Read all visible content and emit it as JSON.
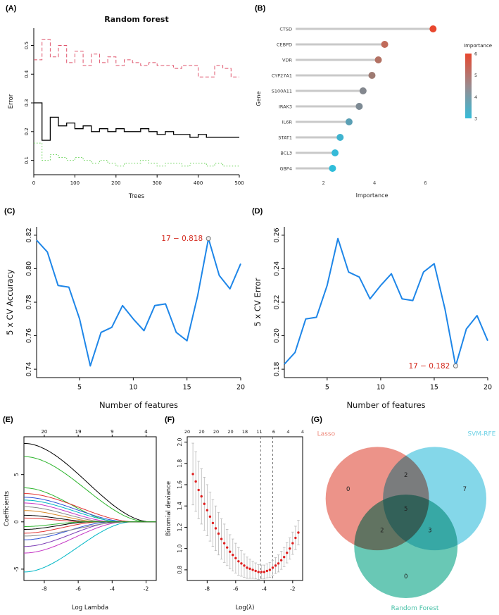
{
  "panels": {
    "A": {
      "label": "(A)"
    },
    "B": {
      "label": "(B)"
    },
    "C": {
      "label": "(C)"
    },
    "D": {
      "label": "(D)"
    },
    "E": {
      "label": "(E)"
    },
    "F": {
      "label": "(F)"
    },
    "G": {
      "label": "(G)"
    }
  },
  "chart_data": [
    {
      "id": "A",
      "type": "rf-error",
      "title": "Random forest",
      "xlabel": "Trees",
      "ylabel": "Error",
      "xlim": [
        0,
        500
      ],
      "ylim": [
        0.05,
        0.56
      ],
      "xticks": [
        "0",
        "100",
        "200",
        "300",
        "400",
        "500"
      ],
      "yticks": [
        "0.1",
        "0.2",
        "0.3",
        "0.4",
        "0.5"
      ],
      "x": [
        0,
        20,
        40,
        60,
        80,
        100,
        120,
        140,
        160,
        180,
        200,
        220,
        240,
        260,
        280,
        300,
        320,
        340,
        360,
        380,
        400,
        420,
        440,
        460,
        480,
        500
      ],
      "series": [
        {
          "name": "class-error-high",
          "color": "#df536b",
          "dash": "5 3",
          "width": 1,
          "values": [
            0.45,
            0.52,
            0.46,
            0.5,
            0.44,
            0.48,
            0.43,
            0.47,
            0.44,
            0.46,
            0.43,
            0.45,
            0.44,
            0.43,
            0.44,
            0.43,
            0.43,
            0.42,
            0.43,
            0.43,
            0.39,
            0.39,
            0.43,
            0.42,
            0.39,
            0.39
          ]
        },
        {
          "name": "oob-error",
          "color": "#000000",
          "dash": "",
          "width": 1.3,
          "values": [
            0.3,
            0.17,
            0.25,
            0.22,
            0.23,
            0.21,
            0.22,
            0.2,
            0.21,
            0.2,
            0.21,
            0.2,
            0.2,
            0.21,
            0.2,
            0.19,
            0.2,
            0.19,
            0.19,
            0.18,
            0.19,
            0.18,
            0.18,
            0.18,
            0.18,
            0.18
          ]
        },
        {
          "name": "class-error-low",
          "color": "#61d04f",
          "dash": "1.5 2.5",
          "width": 1,
          "values": [
            0.16,
            0.1,
            0.12,
            0.11,
            0.1,
            0.11,
            0.1,
            0.09,
            0.1,
            0.09,
            0.08,
            0.09,
            0.09,
            0.1,
            0.09,
            0.08,
            0.09,
            0.09,
            0.08,
            0.09,
            0.09,
            0.08,
            0.09,
            0.08,
            0.08,
            0.08
          ]
        }
      ]
    },
    {
      "id": "B",
      "type": "lollipop",
      "xlabel": "Importance",
      "ylabel": "Gene",
      "xlim": [
        0.9,
        6.9
      ],
      "xticks": [
        "2",
        "4",
        "6"
      ],
      "genes": [
        "CTSD",
        "CEBPD",
        "VDR",
        "CYP27A1",
        "S100A11",
        "IRAK3",
        "IL6R",
        "STAT1",
        "BCL3",
        "GBP4"
      ],
      "values": [
        6.3,
        4.4,
        4.15,
        3.9,
        3.55,
        3.4,
        3.0,
        2.65,
        2.45,
        2.35
      ],
      "colors": [
        "#e8472e",
        "#c06a59",
        "#b37163",
        "#9e7a72",
        "#83878e",
        "#7d8a94",
        "#5a9fb4",
        "#3fb3cf",
        "#35bad8",
        "#2fbdda"
      ],
      "stem_color": "#c9c9c9",
      "legend": {
        "title": "Importance",
        "ticks": [
          "6",
          "5",
          "4",
          "3"
        ],
        "gradient": [
          "#e8472e",
          "#9a8a8e",
          "#35bcd9"
        ]
      }
    },
    {
      "id": "C",
      "type": "cv-line",
      "xlabel": "Number of features",
      "ylabel": "5 x CV Accuracy",
      "xlim": [
        1,
        20
      ],
      "ylim": [
        0.735,
        0.825
      ],
      "xticks": [
        "5",
        "10",
        "15",
        "20"
      ],
      "yticks": [
        "0.74",
        "0.76",
        "0.78",
        "0.80",
        "0.82"
      ],
      "color": "#1e86e8",
      "x": [
        1,
        2,
        3,
        4,
        5,
        6,
        7,
        8,
        9,
        10,
        11,
        12,
        13,
        14,
        15,
        16,
        17,
        18,
        19,
        20
      ],
      "values": [
        0.817,
        0.81,
        0.79,
        0.789,
        0.77,
        0.742,
        0.762,
        0.765,
        0.778,
        0.77,
        0.763,
        0.778,
        0.779,
        0.762,
        0.757,
        0.784,
        0.818,
        0.796,
        0.788,
        0.803
      ],
      "annotation": {
        "text": "17 − 0.818",
        "x": 17,
        "y": 0.818,
        "color": "#d42a1e"
      }
    },
    {
      "id": "D",
      "type": "cv-line",
      "xlabel": "Number of features",
      "ylabel": "5 x CV Error",
      "xlim": [
        1,
        20
      ],
      "ylim": [
        0.175,
        0.265
      ],
      "xticks": [
        "5",
        "10",
        "15",
        "20"
      ],
      "yticks": [
        "0.18",
        "0.20",
        "0.22",
        "0.24",
        "0.26"
      ],
      "color": "#1e86e8",
      "x": [
        1,
        2,
        3,
        4,
        5,
        6,
        7,
        8,
        9,
        10,
        11,
        12,
        13,
        14,
        15,
        16,
        17,
        18,
        19,
        20
      ],
      "values": [
        0.183,
        0.19,
        0.21,
        0.211,
        0.23,
        0.258,
        0.238,
        0.235,
        0.222,
        0.23,
        0.237,
        0.222,
        0.221,
        0.238,
        0.243,
        0.216,
        0.182,
        0.204,
        0.212,
        0.197
      ],
      "annotation": {
        "text": "17 − 0.182",
        "x": 17,
        "y": 0.182,
        "color": "#d42a1e"
      }
    },
    {
      "id": "E",
      "type": "lasso-paths",
      "xlabel": "Log Lambda",
      "ylabel": "Coefficients",
      "xlim": [
        -9.2,
        -1.4
      ],
      "ylim": [
        -6.2,
        9.0
      ],
      "xticks": [
        "-8",
        "-6",
        "-4",
        "-2"
      ],
      "yticks": [
        "-5",
        "0",
        "5"
      ],
      "top_ticks": {
        "positions": [
          -8,
          -6,
          -4,
          -2
        ],
        "labels": [
          "20",
          "19",
          "9",
          "4"
        ]
      },
      "paths": [
        {
          "color": "#000000",
          "y0": 8.3,
          "xz": -1.7
        },
        {
          "color": "#2db52d",
          "y0": 6.9,
          "xz": -1.9
        },
        {
          "color": "#2db52d",
          "y0": 3.6,
          "xz": -3.6
        },
        {
          "color": "#e03232",
          "y0": 3.0,
          "xz": -2.6
        },
        {
          "color": "#2b4fd7",
          "y0": 2.6,
          "xz": -3.0
        },
        {
          "color": "#00b7c6",
          "y0": 2.3,
          "xz": -3.3
        },
        {
          "color": "#c435c4",
          "y0": 2.0,
          "xz": -3.8
        },
        {
          "color": "#8a8a8a",
          "y0": 1.6,
          "xz": -4.2
        },
        {
          "color": "#d78a2b",
          "y0": 1.2,
          "xz": -4.6
        },
        {
          "color": "#000000",
          "y0": 0.7,
          "xz": -5.0
        },
        {
          "color": "#e03232",
          "y0": 0.4,
          "xz": -5.4
        },
        {
          "color": "#00b7c6",
          "y0": -5.3,
          "xz": -2.8
        },
        {
          "color": "#c435c4",
          "y0": -3.3,
          "xz": -3.2
        },
        {
          "color": "#7a3bb5",
          "y0": -2.6,
          "xz": -3.6
        },
        {
          "color": "#2b4fd7",
          "y0": -1.9,
          "xz": -4.0
        },
        {
          "color": "#8a8a8a",
          "y0": -1.5,
          "xz": -3.1
        },
        {
          "color": "#e03232",
          "y0": -1.2,
          "xz": -4.6
        },
        {
          "color": "#000000",
          "y0": -0.8,
          "xz": -5.2
        },
        {
          "color": "#2db52d",
          "y0": -0.5,
          "xz": -5.6
        }
      ]
    },
    {
      "id": "F",
      "type": "deviance",
      "xlabel": "Log(λ)",
      "ylabel": "Binomial deviance",
      "xlim": [
        -9.4,
        -1.3
      ],
      "ylim": [
        0.7,
        2.05
      ],
      "xticks": [
        "-8",
        "-6",
        "-4",
        "-2"
      ],
      "yticks": [
        "0.8",
        "1.0",
        "1.2",
        "1.4",
        "1.6",
        "1.8",
        "2.0"
      ],
      "top_labels": [
        "20",
        "20",
        "20",
        "20",
        "18",
        "11",
        "6",
        "4",
        "4"
      ],
      "vlines": [
        -4.25,
        -3.4
      ],
      "point_color": "#e02020",
      "bar_color": "#b8b8b8",
      "points": [
        [
          -9.0,
          1.7,
          0.29
        ],
        [
          -8.8,
          1.63,
          0.28
        ],
        [
          -8.6,
          1.55,
          0.27
        ],
        [
          -8.4,
          1.49,
          0.26
        ],
        [
          -8.2,
          1.42,
          0.25
        ],
        [
          -8.0,
          1.36,
          0.24
        ],
        [
          -7.8,
          1.3,
          0.23
        ],
        [
          -7.6,
          1.24,
          0.22
        ],
        [
          -7.4,
          1.19,
          0.21
        ],
        [
          -7.2,
          1.14,
          0.2
        ],
        [
          -7.0,
          1.09,
          0.19
        ],
        [
          -6.8,
          1.05,
          0.18
        ],
        [
          -6.6,
          1.01,
          0.17
        ],
        [
          -6.4,
          0.97,
          0.16
        ],
        [
          -6.2,
          0.94,
          0.15
        ],
        [
          -6.0,
          0.91,
          0.14
        ],
        [
          -5.8,
          0.88,
          0.13
        ],
        [
          -5.6,
          0.86,
          0.12
        ],
        [
          -5.4,
          0.84,
          0.11
        ],
        [
          -5.2,
          0.82,
          0.1
        ],
        [
          -5.0,
          0.81,
          0.09
        ],
        [
          -4.8,
          0.8,
          0.08
        ],
        [
          -4.6,
          0.79,
          0.075
        ],
        [
          -4.4,
          0.78,
          0.07
        ],
        [
          -4.2,
          0.78,
          0.065
        ],
        [
          -4.0,
          0.78,
          0.065
        ],
        [
          -3.8,
          0.79,
          0.065
        ],
        [
          -3.6,
          0.8,
          0.07
        ],
        [
          -3.4,
          0.82,
          0.07
        ],
        [
          -3.2,
          0.84,
          0.075
        ],
        [
          -3.0,
          0.86,
          0.08
        ],
        [
          -2.8,
          0.89,
          0.085
        ],
        [
          -2.6,
          0.92,
          0.09
        ],
        [
          -2.4,
          0.96,
          0.095
        ],
        [
          -2.2,
          1.0,
          0.1
        ],
        [
          -2.0,
          1.05,
          0.105
        ],
        [
          -1.8,
          1.1,
          0.11
        ],
        [
          -1.6,
          1.15,
          0.115
        ]
      ]
    },
    {
      "id": "G",
      "type": "venn",
      "sets": [
        {
          "name": "Lasso",
          "color": "#e4695b",
          "label_color": "#ee8a7c",
          "cx": 0.36,
          "cy": 0.39,
          "r": 0.275,
          "label_x": 0.04,
          "label_y": 0.055,
          "label_anchor": "start"
        },
        {
          "name": "SVM-RFE",
          "color": "#54c7e0",
          "label_color": "#6fd2e6",
          "cx": 0.665,
          "cy": 0.39,
          "r": 0.275,
          "label_x": 0.99,
          "label_y": 0.055,
          "label_anchor": "end"
        },
        {
          "name": "Random Forest",
          "color": "#2fb398",
          "label_color": "#46c0a6",
          "cx": 0.512,
          "cy": 0.645,
          "r": 0.275,
          "label_x": 0.56,
          "label_y": 0.985,
          "label_anchor": "middle"
        }
      ],
      "counts": [
        {
          "label": "0",
          "x": 0.205,
          "y": 0.35
        },
        {
          "label": "2",
          "x": 0.512,
          "y": 0.275
        },
        {
          "label": "7",
          "x": 0.825,
          "y": 0.35
        },
        {
          "label": "5",
          "x": 0.512,
          "y": 0.455
        },
        {
          "label": "2",
          "x": 0.385,
          "y": 0.57
        },
        {
          "label": "3",
          "x": 0.64,
          "y": 0.57
        },
        {
          "label": "0",
          "x": 0.512,
          "y": 0.815
        }
      ]
    }
  ]
}
